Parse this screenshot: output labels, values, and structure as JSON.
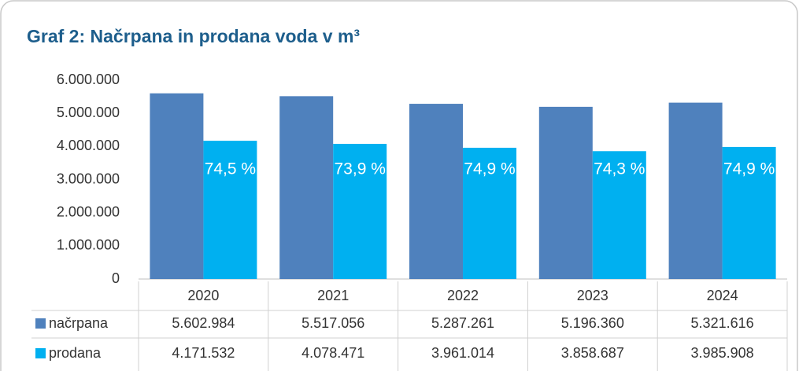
{
  "chart_data": {
    "type": "bar",
    "title": "Graf 2: Načrpana in prodana voda v m³",
    "categories": [
      "2020",
      "2021",
      "2022",
      "2023",
      "2024"
    ],
    "series": [
      {
        "name": "načrpana",
        "color": "#4f81bd",
        "values": [
          5602984,
          5517056,
          5287261,
          5196360,
          5321616
        ],
        "value_labels": [
          "5.602.984",
          "5.517.056",
          "5.287.261",
          "5.196.360",
          "5.321.616"
        ]
      },
      {
        "name": "prodana",
        "color": "#00b0f0",
        "values": [
          4171532,
          4078471,
          3961014,
          3858687,
          3985908
        ],
        "value_labels": [
          "4.171.532",
          "4.078.471",
          "3.961.014",
          "3.858.687",
          "3.985.908"
        ]
      }
    ],
    "annotations": [
      "74,5 %",
      "73,9 %",
      "74,9 %",
      "74,3 %",
      "74,9 %"
    ],
    "ylim": [
      0,
      6000000
    ],
    "yticks": [
      0,
      {
        "value": 1000000,
        "label": "1.000.000"
      },
      {
        "value": 2000000,
        "label": "2.000.000"
      },
      {
        "value": 3000000,
        "label": "3.000.000"
      },
      {
        "value": 4000000,
        "label": "4.000.000"
      },
      {
        "value": 5000000,
        "label": "5.000.000"
      },
      {
        "value": 6000000,
        "label": "6.000.000"
      }
    ],
    "grid": false
  }
}
